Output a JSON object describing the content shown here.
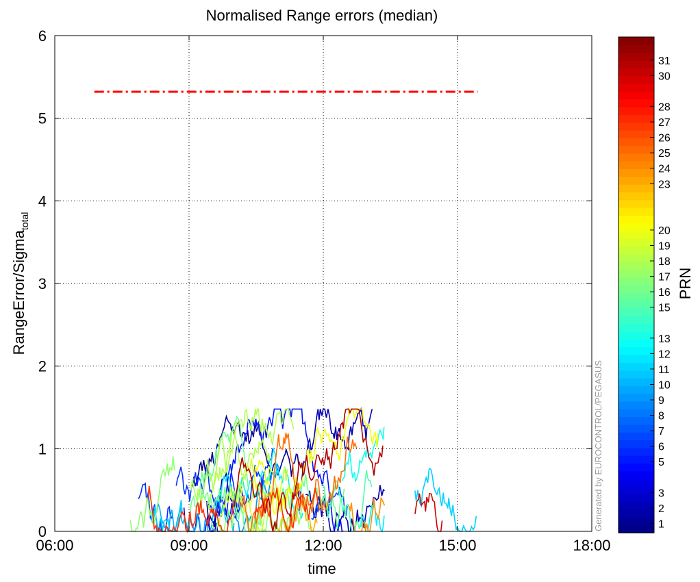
{
  "chart_data": {
    "type": "line",
    "title": "Normalised Range errors (median)",
    "xlabel": "time",
    "ylabel_main": "RangeError/Sigma",
    "ylabel_sub": "total",
    "xlim": [
      "06:00",
      "18:00"
    ],
    "ylim": [
      0,
      6
    ],
    "x_ticks": [
      "06:00",
      "09:00",
      "12:00",
      "15:00",
      "18:00"
    ],
    "y_ticks": [
      "0",
      "1",
      "2",
      "3",
      "4",
      "5",
      "6"
    ],
    "grid": true,
    "threshold": {
      "value": 5.32,
      "x_start": "06:53",
      "x_end": "15:27",
      "color": "#ff0000",
      "style": "dash-dot"
    },
    "data_window": {
      "x_start": "06:53",
      "x_end": "15:27",
      "gap": [
        "13:23",
        "14:03"
      ]
    },
    "approx_max": 1.48,
    "colorbar": {
      "label": "PRN",
      "ticks": [
        "1",
        "2",
        "3",
        "5",
        "6",
        "7",
        "8",
        "9",
        "10",
        "11",
        "12",
        "13",
        "15",
        "16",
        "17",
        "18",
        "19",
        "20",
        "23",
        "24",
        "25",
        "26",
        "27",
        "28",
        "30",
        "31"
      ],
      "range": [
        0.4,
        32.5
      ],
      "colormap": "jet"
    },
    "watermark": "Generated by EUROCONTROL/PEGASUS"
  }
}
